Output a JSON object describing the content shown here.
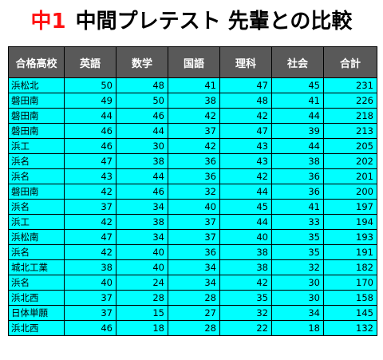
{
  "title": {
    "grade": "中1",
    "text": "中間プレテスト 先輩との比較"
  },
  "table": {
    "headers": [
      "合格高校",
      "英語",
      "数学",
      "国語",
      "理科",
      "社会",
      "合計"
    ],
    "rows": [
      [
        "浜松北",
        "50",
        "48",
        "41",
        "47",
        "45",
        "231"
      ],
      [
        "磐田南",
        "49",
        "50",
        "38",
        "48",
        "41",
        "226"
      ],
      [
        "磐田南",
        "44",
        "46",
        "42",
        "42",
        "44",
        "218"
      ],
      [
        "磐田南",
        "46",
        "44",
        "37",
        "47",
        "39",
        "213"
      ],
      [
        "浜工",
        "46",
        "30",
        "42",
        "43",
        "44",
        "205"
      ],
      [
        "浜名",
        "47",
        "38",
        "36",
        "43",
        "38",
        "202"
      ],
      [
        "浜名",
        "43",
        "44",
        "36",
        "42",
        "36",
        "201"
      ],
      [
        "磐田南",
        "42",
        "46",
        "32",
        "44",
        "36",
        "200"
      ],
      [
        "浜名",
        "37",
        "34",
        "40",
        "45",
        "41",
        "197"
      ],
      [
        "浜工",
        "42",
        "38",
        "37",
        "44",
        "33",
        "194"
      ],
      [
        "浜松南",
        "47",
        "34",
        "37",
        "40",
        "35",
        "193"
      ],
      [
        "浜名",
        "42",
        "40",
        "36",
        "38",
        "35",
        "191"
      ],
      [
        "城北工業",
        "38",
        "40",
        "34",
        "38",
        "32",
        "182"
      ],
      [
        "浜名",
        "40",
        "24",
        "34",
        "42",
        "30",
        "170"
      ],
      [
        "浜北西",
        "37",
        "28",
        "28",
        "35",
        "30",
        "158"
      ],
      [
        "日体単願",
        "37",
        "15",
        "27",
        "32",
        "34",
        "145"
      ],
      [
        "浜北西",
        "46",
        "18",
        "28",
        "22",
        "18",
        "132"
      ]
    ]
  }
}
